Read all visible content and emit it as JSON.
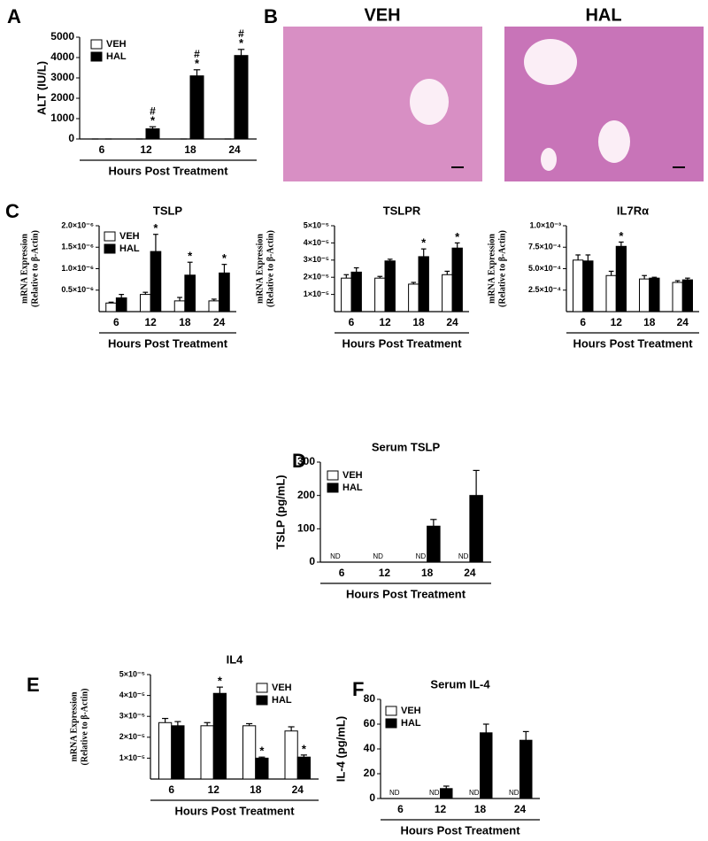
{
  "chart_data": [
    {
      "panel": "A",
      "type": "bar",
      "y_label": [
        "ALT (IU/L)"
      ],
      "x_label": "Hours Post Treatment",
      "categories": [
        "6",
        "12",
        "18",
        "24"
      ],
      "ylim": [
        0,
        5000
      ],
      "yticks": [
        0,
        1000,
        2000,
        3000,
        4000,
        5000
      ],
      "legend": true,
      "series": [
        {
          "name": "VEH",
          "color": "#ffffff",
          "values": [
            0,
            0,
            0,
            0
          ],
          "errors": [
            0,
            0,
            0,
            0
          ]
        },
        {
          "name": "HAL",
          "color": "#000000",
          "values": [
            0,
            500,
            3100,
            4100
          ],
          "errors": [
            0,
            100,
            300,
            300
          ],
          "star_labels": [
            null,
            "*",
            "*",
            "*"
          ],
          "hash_labels": [
            null,
            "#",
            "#",
            "#"
          ]
        }
      ]
    },
    {
      "panel": "B",
      "type": "image",
      "titles": [
        "VEH",
        "HAL"
      ]
    },
    {
      "panel": "C",
      "type": "bar",
      "title": "TSLP",
      "y_label": [
        "mRNA Expression",
        "(Relative to β-Actin)"
      ],
      "x_label": "Hours Post Treatment",
      "categories": [
        "6",
        "12",
        "18",
        "24"
      ],
      "ylim": [
        0,
        2e-06
      ],
      "legend": true,
      "yticks": [
        {
          "value": 5e-07,
          "label": "0.5×10⁻⁶"
        },
        {
          "value": 1e-06,
          "label": "1.0×10⁻⁶"
        },
        {
          "value": 1.5e-06,
          "label": "1.5×10⁻⁶"
        },
        {
          "value": 2e-06,
          "label": "2.0×10⁻⁶"
        }
      ],
      "series": [
        {
          "name": "VEH",
          "color": "#ffffff",
          "values": [
            2e-07,
            4e-07,
            2.5e-07,
            2.5e-07
          ],
          "errors": [
            2e-08,
            5e-08,
            8e-08,
            4e-08
          ]
        },
        {
          "name": "HAL",
          "color": "#000000",
          "values": [
            3.2e-07,
            1.4e-06,
            8.5e-07,
            9e-07
          ],
          "errors": [
            8e-08,
            4e-07,
            3e-07,
            2e-07
          ],
          "star_labels": [
            null,
            "*",
            "*",
            "*"
          ]
        }
      ]
    },
    {
      "type": "bar",
      "title": "TSLPR",
      "y_label": [
        "mRNA Expression",
        "(Relative to β-Actin)"
      ],
      "x_label": "Hours Post Treatment",
      "categories": [
        "6",
        "12",
        "18",
        "24"
      ],
      "ylim": [
        0,
        5e-05
      ],
      "legend": false,
      "yticks": [
        {
          "value": 1e-05,
          "label": "1×10⁻⁵"
        },
        {
          "value": 2e-05,
          "label": "2×10⁻⁵"
        },
        {
          "value": 3e-05,
          "label": "3×10⁻⁵"
        },
        {
          "value": 4e-05,
          "label": "4×10⁻⁵"
        },
        {
          "value": 5e-05,
          "label": "5×10⁻⁵"
        }
      ],
      "series": [
        {
          "name": "VEH",
          "color": "#ffffff",
          "values": [
            1.95e-05,
            1.95e-05,
            1.6e-05,
            2.15e-05
          ],
          "errors": [
            2e-06,
            1e-06,
            1e-06,
            2e-06
          ]
        },
        {
          "name": "HAL",
          "color": "#000000",
          "values": [
            2.3e-05,
            2.95e-05,
            3.2e-05,
            3.7e-05
          ],
          "errors": [
            2.5e-06,
            1e-06,
            4.5e-06,
            3e-06
          ],
          "star_labels": [
            null,
            null,
            "*",
            "*"
          ]
        }
      ]
    },
    {
      "type": "bar",
      "title": "IL7Rα",
      "y_label": [
        "mRNA Expression",
        "(Relative to β-Actin)"
      ],
      "x_label": "Hours Post Treatment",
      "categories": [
        "6",
        "12",
        "18",
        "24"
      ],
      "ylim": [
        0,
        0.001
      ],
      "legend": false,
      "yticks": [
        {
          "value": 0.00025,
          "label": "2.5×10⁻⁴"
        },
        {
          "value": 0.0005,
          "label": "5.0×10⁻⁴"
        },
        {
          "value": 0.00075,
          "label": "7.5×10⁻⁴"
        },
        {
          "value": 0.001,
          "label": "1.0×10⁻³"
        }
      ],
      "series": [
        {
          "name": "VEH",
          "color": "#ffffff",
          "values": [
            0.0006,
            0.00042,
            0.00038,
            0.00034
          ],
          "errors": [
            6e-05,
            5e-05,
            4e-05,
            2e-05
          ]
        },
        {
          "name": "HAL",
          "color": "#000000",
          "values": [
            0.00059,
            0.00076,
            0.00039,
            0.00037
          ],
          "errors": [
            7e-05,
            5e-05,
            1e-05,
            2e-05
          ],
          "star_labels": [
            null,
            "*",
            null,
            null
          ]
        }
      ]
    },
    {
      "panel": "D",
      "type": "bar",
      "title": "Serum TSLP",
      "y_label": [
        "TSLP (pg/mL)"
      ],
      "x_label": "Hours Post Treatment",
      "categories": [
        "6",
        "12",
        "18",
        "24"
      ],
      "ylim": [
        0,
        300
      ],
      "yticks": [
        0,
        100,
        200,
        300
      ],
      "legend": true,
      "series": [
        {
          "name": "VEH",
          "color": "#ffffff",
          "values": [
            null,
            null,
            null,
            null
          ],
          "value_labels": [
            "ND",
            "ND",
            "ND",
            "ND"
          ]
        },
        {
          "name": "HAL",
          "color": "#000000",
          "values": [
            null,
            null,
            108,
            200
          ],
          "errors": [
            null,
            null,
            20,
            75
          ]
        }
      ]
    },
    {
      "panel": "E",
      "type": "bar",
      "title": "IL4",
      "y_label": [
        "mRNA Expression",
        "(Relative to β-Actin)"
      ],
      "x_label": "Hours Post Treatment",
      "categories": [
        "6",
        "12",
        "18",
        "24"
      ],
      "ylim": [
        0,
        5e-05
      ],
      "legend": true,
      "yticks": [
        {
          "value": 1e-05,
          "label": "1×10⁻⁵"
        },
        {
          "value": 2e-05,
          "label": "2×10⁻⁵"
        },
        {
          "value": 3e-05,
          "label": "3×10⁻⁵"
        },
        {
          "value": 4e-05,
          "label": "4×10⁻⁵"
        },
        {
          "value": 5e-05,
          "label": "5×10⁻⁵"
        }
      ],
      "series": [
        {
          "name": "VEH",
          "color": "#ffffff",
          "values": [
            2.7e-05,
            2.55e-05,
            2.55e-05,
            2.3e-05
          ],
          "errors": [
            2e-06,
            1.5e-06,
            1e-06,
            2e-06
          ]
        },
        {
          "name": "HAL",
          "color": "#000000",
          "values": [
            2.55e-05,
            4.1e-05,
            1e-05,
            1.05e-05
          ],
          "errors": [
            2e-06,
            3e-06,
            5e-07,
            1e-06
          ],
          "star_labels": [
            null,
            "*",
            "*",
            "*"
          ]
        }
      ]
    },
    {
      "panel": "F",
      "type": "bar",
      "title": "Serum IL-4",
      "y_label": [
        "IL-4 (pg/mL)"
      ],
      "x_label": "Hours Post Treatment",
      "categories": [
        "6",
        "12",
        "18",
        "24"
      ],
      "ylim": [
        0,
        80
      ],
      "yticks": [
        0,
        20,
        40,
        60,
        80
      ],
      "legend": true,
      "series": [
        {
          "name": "VEH",
          "color": "#ffffff",
          "values": [
            null,
            null,
            null,
            null
          ],
          "value_labels": [
            "ND",
            "ND",
            "ND",
            "ND"
          ]
        },
        {
          "name": "HAL",
          "color": "#000000",
          "values": [
            null,
            8,
            53,
            47
          ],
          "errors": [
            null,
            2,
            7,
            7
          ]
        }
      ]
    }
  ]
}
